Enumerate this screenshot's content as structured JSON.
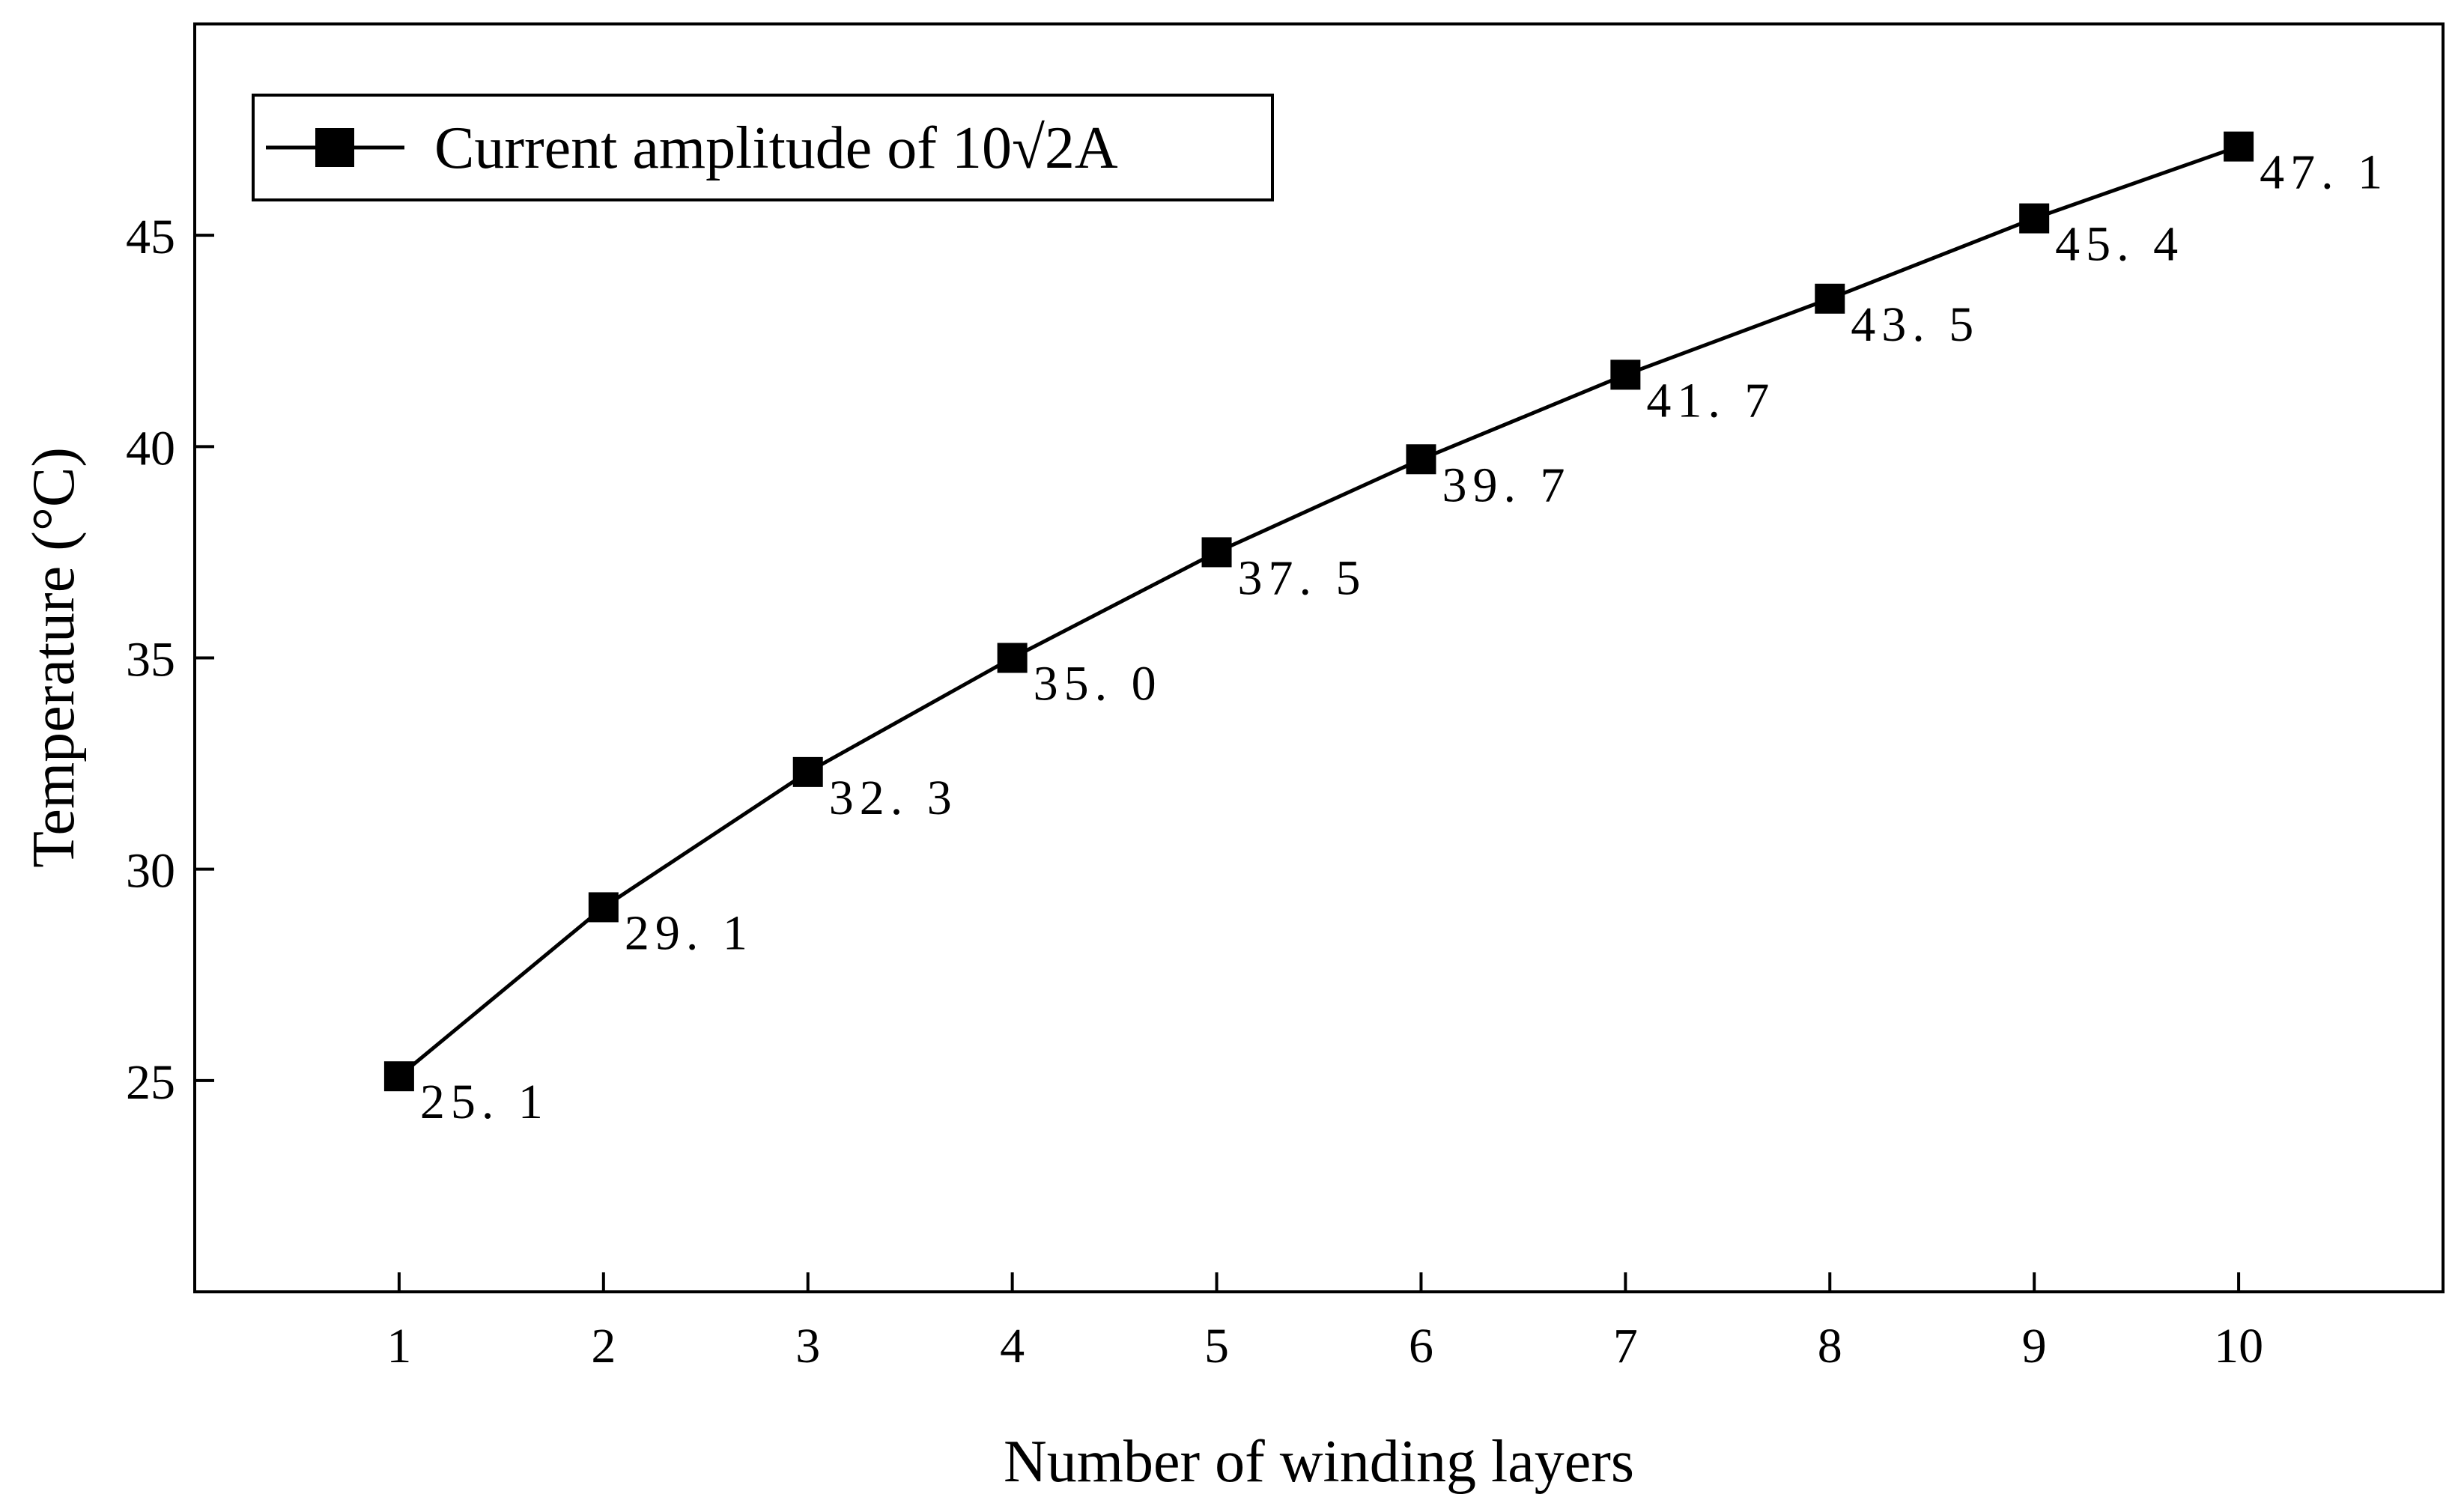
{
  "chart_data": {
    "type": "line",
    "xlabel": "Number of winding layers",
    "ylabel": "Temperature  (°C)",
    "x": [
      1,
      2,
      3,
      4,
      5,
      6,
      7,
      8,
      9,
      10
    ],
    "series": [
      {
        "name": "Current amplitude of 10√2A",
        "values": [
          25.1,
          29.1,
          32.3,
          35.0,
          37.5,
          39.7,
          41.7,
          43.5,
          45.4,
          47.1
        ],
        "labels": [
          "25. 1",
          "29. 1",
          "32. 3",
          "35. 0",
          "37. 5",
          "39. 7",
          "41. 7",
          "43. 5",
          "45. 4",
          "47. 1"
        ],
        "color": "#000000",
        "marker": "square"
      }
    ],
    "xticks": [
      1,
      2,
      3,
      4,
      5,
      6,
      7,
      8,
      9,
      10
    ],
    "yticks": [
      25,
      30,
      35,
      40,
      45
    ],
    "xlim": [
      0.0,
      11.0
    ],
    "ylim": [
      20.0,
      50.0
    ],
    "grid": false,
    "legend_position": "top-left"
  }
}
